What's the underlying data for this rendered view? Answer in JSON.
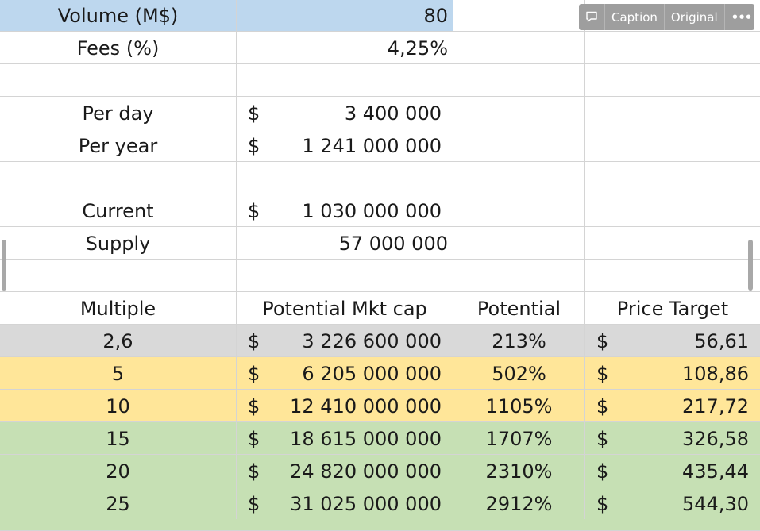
{
  "toolbar": {
    "caption_label": "Caption",
    "original_label": "Original",
    "more_label": "•••"
  },
  "summary": {
    "volume_label": "Volume (M$)",
    "volume_value": "80",
    "fees_label": "Fees (%)",
    "fees_value": "4,25%",
    "per_day_label": "Per day",
    "per_day_currency": "$",
    "per_day_value": "3 400 000",
    "per_year_label": "Per year",
    "per_year_currency": "$",
    "per_year_value": "1 241 000 000",
    "current_label": "Current",
    "current_currency": "$",
    "current_value": "1 030 000 000",
    "supply_label": "Supply",
    "supply_value": "57 000 000"
  },
  "table": {
    "headers": [
      "Multiple",
      "Potential Mkt cap",
      "Potential",
      "Price Target"
    ],
    "rows": [
      {
        "multiple": "2,6",
        "cur1": "$",
        "mktcap": "3 226 600 000",
        "potential": "213%",
        "cur2": "$",
        "price": "56,61"
      },
      {
        "multiple": "5",
        "cur1": "$",
        "mktcap": "6 205 000 000",
        "potential": "502%",
        "cur2": "$",
        "price": "108,86"
      },
      {
        "multiple": "10",
        "cur1": "$",
        "mktcap": "12 410 000 000",
        "potential": "1105%",
        "cur2": "$",
        "price": "217,72"
      },
      {
        "multiple": "15",
        "cur1": "$",
        "mktcap": "18 615 000 000",
        "potential": "1707%",
        "cur2": "$",
        "price": "326,58"
      },
      {
        "multiple": "20",
        "cur1": "$",
        "mktcap": "24 820 000 000",
        "potential": "2310%",
        "cur2": "$",
        "price": "435,44"
      },
      {
        "multiple": "25",
        "cur1": "$",
        "mktcap": "31 025 000 000",
        "potential": "2912%",
        "cur2": "$",
        "price": "544,30"
      }
    ]
  },
  "colors": {
    "volume_row": "#bdd7ee",
    "row_grey": "#d9d9d9",
    "row_yellow": "#ffe699",
    "row_green": "#c6e0b4",
    "gridline": "#d4d4d4"
  }
}
